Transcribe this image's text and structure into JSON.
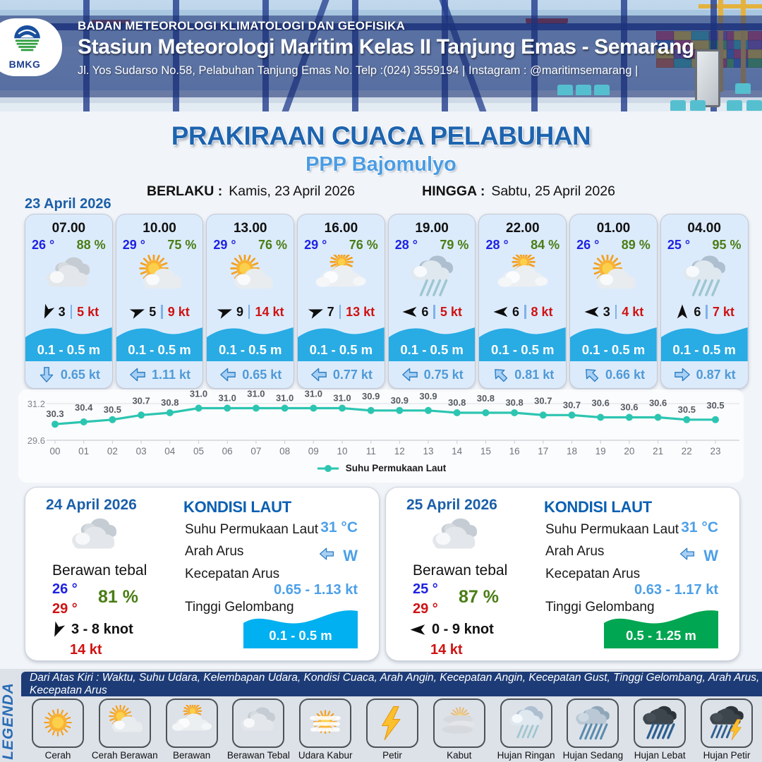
{
  "header": {
    "org": "BADAN METEOROLOGI KLIMATOLOGI DAN GEOFISIKA",
    "station": "Stasiun Meteorologi Maritim Kelas II Tanjung Emas - Semarang",
    "address": "Jl. Yos Sudarso No.58, Pelabuhan Tanjung Emas No. Telp :(024) 3559194 | Instagram : @maritimsemarang |",
    "logo_text": "BMKG"
  },
  "title": {
    "main": "PRAKIRAAN CUACA PELABUHAN",
    "port": "PPP Bajomulyo",
    "valid_label": "BERLAKU :",
    "valid_value": "Kamis, 23 April 2026",
    "until_label": "HINGGA :",
    "until_value": "Sabtu, 25 April 2026"
  },
  "day1": {
    "date": "23 April 2026",
    "cards": [
      {
        "time": "07.00",
        "temp": "26 °",
        "humidity": "88 %",
        "icon": "berawan-tebal",
        "wind_dir": "SSW",
        "wind_speed": "3",
        "gust": "5 kt",
        "wave": "0.1 - 0.5 m",
        "current_dir": "S",
        "current_speed": "0.65 kt"
      },
      {
        "time": "10.00",
        "temp": "29 °",
        "humidity": "75 %",
        "icon": "cerah-berawan",
        "wind_dir": "ENE",
        "wind_speed": "5",
        "gust": "9 kt",
        "wave": "0.1 - 0.5 m",
        "current_dir": "W",
        "current_speed": "1.11 kt"
      },
      {
        "time": "13.00",
        "temp": "29 °",
        "humidity": "76 %",
        "icon": "cerah-berawan",
        "wind_dir": "ENE",
        "wind_speed": "9",
        "gust": "14 kt",
        "wave": "0.1 - 0.5 m",
        "current_dir": "W",
        "current_speed": "0.65 kt"
      },
      {
        "time": "16.00",
        "temp": "29 °",
        "humidity": "76 %",
        "icon": "berawan",
        "wind_dir": "ENE",
        "wind_speed": "7",
        "gust": "13 kt",
        "wave": "0.1 - 0.5 m",
        "current_dir": "W",
        "current_speed": "0.77 kt"
      },
      {
        "time": "19.00",
        "temp": "28 °",
        "humidity": "79 %",
        "icon": "hujan-ringan",
        "wind_dir": "W",
        "wind_speed": "6",
        "gust": "5 kt",
        "wave": "0.1 - 0.5 m",
        "current_dir": "W",
        "current_speed": "0.75 kt"
      },
      {
        "time": "22.00",
        "temp": "28 °",
        "humidity": "84 %",
        "icon": "berawan",
        "wind_dir": "W",
        "wind_speed": "6",
        "gust": "8 kt",
        "wave": "0.1 - 0.5 m",
        "current_dir": "NW",
        "current_speed": "0.81 kt"
      },
      {
        "time": "01.00",
        "temp": "26 °",
        "humidity": "89 %",
        "icon": "cerah-berawan",
        "wind_dir": "W",
        "wind_speed": "3",
        "gust": "4 kt",
        "wave": "0.1 - 0.5 m",
        "current_dir": "NW",
        "current_speed": "0.66 kt"
      },
      {
        "time": "04.00",
        "temp": "25 °",
        "humidity": "95 %",
        "icon": "hujan-ringan",
        "wind_dir": "N",
        "wind_speed": "6",
        "gust": "7 kt",
        "wave": "0.1 - 0.5 m",
        "current_dir": "E",
        "current_speed": "0.87 kt"
      }
    ]
  },
  "chart_data": {
    "type": "line",
    "x": [
      "00",
      "01",
      "02",
      "03",
      "04",
      "05",
      "06",
      "07",
      "08",
      "09",
      "10",
      "11",
      "12",
      "13",
      "14",
      "15",
      "16",
      "17",
      "18",
      "19",
      "20",
      "21",
      "22",
      "23"
    ],
    "values": [
      30.3,
      30.4,
      30.5,
      30.7,
      30.8,
      31.0,
      31.0,
      31.0,
      31.0,
      31.0,
      31.0,
      30.9,
      30.9,
      30.9,
      30.8,
      30.8,
      30.8,
      30.7,
      30.7,
      30.6,
      30.6,
      30.6,
      30.5,
      30.5
    ],
    "series_name": "Suhu Permukaan Laut",
    "title": "",
    "xlabel": "",
    "ylabel": "",
    "ylim": [
      29.6,
      31.2
    ],
    "yticks": [
      "31.2",
      "29.6"
    ],
    "line_color": "#2cc5b1",
    "grid": true,
    "legend_position": "bottom"
  },
  "day_cards": [
    {
      "date": "24 April 2026",
      "condition": "Berawan tebal",
      "icon": "berawan-tebal",
      "temp_min": "26 °",
      "temp_max": "29 °",
      "humidity": "81 %",
      "wind_dir": "SSW",
      "wind_range": "3  - 8 knot",
      "gust": "14 kt",
      "sea": {
        "title": "KONDISI LAUT",
        "sst_label": "Suhu Permukaan Laut",
        "sst": "31 °C",
        "current_dir_label": "Arah Arus",
        "current_dir": "W",
        "current_speed_label": "Kecepatan Arus",
        "current_speed": "0.65 - 1.13 kt",
        "wave_label": "Tinggi Gelombang",
        "wave": "0.1 - 0.5 m",
        "wave_color": "#00b0f0"
      }
    },
    {
      "date": "25 April 2026",
      "condition": "Berawan tebal",
      "icon": "berawan-tebal",
      "temp_min": "25 °",
      "temp_max": "29 °",
      "humidity": "87 %",
      "wind_dir": "W",
      "wind_range": "0  - 9 knot",
      "gust": "14 kt",
      "sea": {
        "title": "KONDISI LAUT",
        "sst_label": "Suhu Permukaan Laut",
        "sst": "31 °C",
        "current_dir_label": "Arah Arus",
        "current_dir": "W",
        "current_speed_label": "Kecepatan Arus",
        "current_speed": "0.63 - 1.17 kt",
        "wave_label": "Tinggi Gelombang",
        "wave": "0.5 - 1.25 m",
        "wave_color": "#00a651"
      }
    }
  ],
  "legend": {
    "vertical_label": "LEGENDA",
    "note": "Dari Atas Kiri : Waktu, Suhu Udara, Kelembapan Udara, Kondisi Cuaca, Arah Angin, Kecepatan Angin, Kecepatan Gust, Tinggi Gelombang, Arah Arus, Kecepatan Arus",
    "items": [
      {
        "label": "Cerah",
        "icon": "cerah"
      },
      {
        "label": "Cerah Berawan",
        "icon": "cerah-berawan"
      },
      {
        "label": "Berawan",
        "icon": "berawan"
      },
      {
        "label": "Berawan Tebal",
        "icon": "berawan-tebal"
      },
      {
        "label": "Udara Kabur",
        "icon": "udara-kabur"
      },
      {
        "label": "Petir",
        "icon": "petir"
      },
      {
        "label": "Kabut",
        "icon": "kabut"
      },
      {
        "label": "Hujan Ringan",
        "icon": "hujan-ringan"
      },
      {
        "label": "Hujan Sedang",
        "icon": "hujan-sedang"
      },
      {
        "label": "Hujan Lebat",
        "icon": "hujan-lebat"
      },
      {
        "label": "Hujan Petir",
        "icon": "hujan-petir"
      }
    ]
  }
}
